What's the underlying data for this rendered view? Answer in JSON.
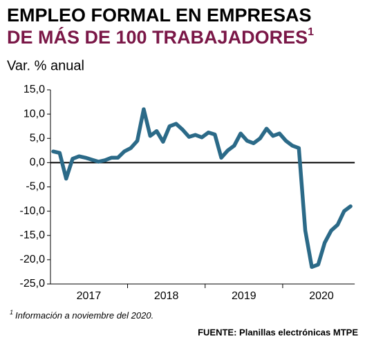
{
  "chart_data": {
    "type": "line",
    "title_lines": [
      "EMPLEO FORMAL EN EMPRESAS",
      "DE MÁS DE 100 TRABAJADORES"
    ],
    "title_marker": "1",
    "subtitle": "Var. % anual",
    "footnote_marker": "1",
    "footnote": "Información a noviembre del 2020.",
    "source": "FUENTE: Planillas electrónicas MTPE",
    "categories": [
      null,
      null,
      null,
      null,
      null,
      "2017",
      null,
      null,
      null,
      null,
      null,
      null,
      null,
      null,
      null,
      null,
      null,
      "2018",
      null,
      null,
      null,
      null,
      null,
      null,
      null,
      null,
      null,
      null,
      null,
      "2019",
      null,
      null,
      null,
      null,
      null,
      null,
      null,
      null,
      null,
      null,
      null,
      "2020",
      null,
      null,
      null,
      null,
      null
    ],
    "series": [
      {
        "color": "#2b6a88",
        "values": [
          2.3,
          2.0,
          -3.3,
          0.8,
          1.3,
          1.0,
          0.6,
          0.2,
          0.5,
          1.0,
          1.0,
          2.3,
          3.0,
          4.5,
          11.0,
          5.5,
          6.5,
          4.3,
          7.5,
          8.0,
          6.8,
          5.3,
          5.7,
          5.2,
          6.2,
          5.8,
          1.0,
          2.5,
          3.5,
          6.0,
          4.5,
          4.0,
          5.0,
          7.0,
          5.5,
          6.0,
          4.5,
          3.5,
          3.0,
          -14.0,
          -21.5,
          -21.0,
          -16.5,
          -14.0,
          -12.8,
          -10.0,
          -9.0
        ]
      }
    ],
    "ylim": [
      -25,
      15
    ],
    "yticks": [
      {
        "value": -25,
        "label": "-25,0"
      },
      {
        "value": -20,
        "label": "-20,0"
      },
      {
        "value": -15,
        "label": "-15,0"
      },
      {
        "value": -10,
        "label": "-10,0"
      },
      {
        "value": -5,
        "label": "-5,0"
      },
      {
        "value": 0,
        "label": "0,0"
      },
      {
        "value": 5,
        "label": "5,0"
      },
      {
        "value": 10,
        "label": "10,0"
      },
      {
        "value": 15,
        "label": "15,0"
      }
    ],
    "title_color": "#7a1747"
  }
}
